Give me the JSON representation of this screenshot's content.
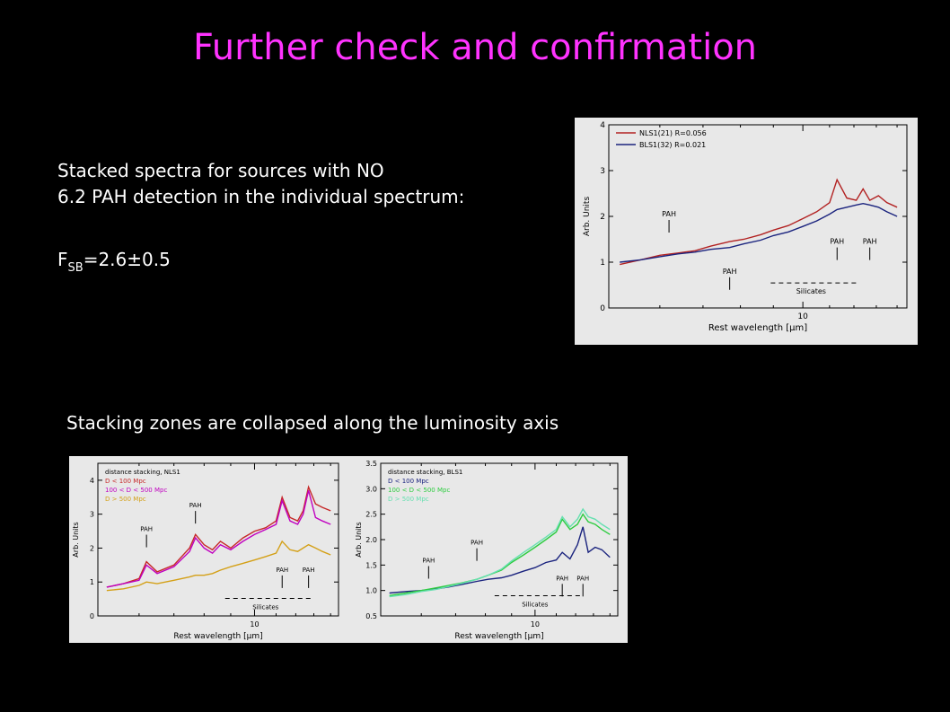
{
  "slide": {
    "title": "Further check and confirmation",
    "line1": "Stacked spectra for sources with NO",
    "line2": "6.2 PAH detection in the individual spectrum:",
    "fsb_main": "F",
    "fsb_sub": "SB",
    "fsb_value": "=2.6±0.5",
    "caption": "Stacking zones are collapsed along the luminosity axis"
  },
  "chart_data": [
    {
      "type": "line",
      "xlabel": "Rest wavelength [μm]",
      "ylabel": "Arb. Units",
      "xlim": [
        5,
        14.5
      ],
      "ylim": [
        0,
        4
      ],
      "x_ticks": [
        10
      ],
      "y_ticks": [
        0,
        1,
        2,
        3,
        4
      ],
      "x_tick_labels": [
        "10"
      ],
      "y_tick_labels": [
        "0",
        "1",
        "2",
        "3",
        "4"
      ],
      "legend_position": "top-left",
      "annotations": [
        {
          "text": "PAH",
          "x": 6.2,
          "y": 2.0
        },
        {
          "text": "PAH",
          "x": 7.7,
          "y": 0.75
        },
        {
          "text": "PAH",
          "x": 11.3,
          "y": 1.4
        },
        {
          "text": "PAH",
          "x": 12.7,
          "y": 1.4
        },
        {
          "text": "Silicates",
          "x": 10.3,
          "y": 0.35
        }
      ],
      "series": [
        {
          "name": "NLS1(21) R=0.056",
          "color": "#b22222",
          "x": [
            5.2,
            5.6,
            6.0,
            6.4,
            6.8,
            7.2,
            7.7,
            8.1,
            8.6,
            9.0,
            9.5,
            10.0,
            10.5,
            11.0,
            11.3,
            11.7,
            12.1,
            12.4,
            12.7,
            13.1,
            13.5,
            14.0
          ],
          "y": [
            0.95,
            1.05,
            1.15,
            1.2,
            1.25,
            1.35,
            1.45,
            1.5,
            1.6,
            1.7,
            1.8,
            1.95,
            2.1,
            2.3,
            2.8,
            2.4,
            2.35,
            2.6,
            2.35,
            2.45,
            2.3,
            2.2
          ]
        },
        {
          "name": "BLS1(32) R=0.021",
          "color": "#1a237e",
          "x": [
            5.2,
            5.6,
            6.0,
            6.4,
            6.8,
            7.2,
            7.7,
            8.1,
            8.6,
            9.0,
            9.5,
            10.0,
            10.5,
            11.0,
            11.3,
            11.7,
            12.1,
            12.4,
            12.7,
            13.1,
            13.5,
            14.0
          ],
          "y": [
            1.0,
            1.05,
            1.12,
            1.18,
            1.22,
            1.28,
            1.32,
            1.4,
            1.48,
            1.58,
            1.66,
            1.78,
            1.9,
            2.05,
            2.15,
            2.2,
            2.25,
            2.28,
            2.25,
            2.2,
            2.1,
            2.0
          ]
        }
      ]
    },
    {
      "type": "line",
      "xlabel": "Rest wavelength [μm]",
      "ylabel": "Arb. Units",
      "xlim": [
        5,
        14.5
      ],
      "ylim": [
        0,
        4.5
      ],
      "x_ticks": [
        10
      ],
      "y_ticks": [
        0,
        1,
        2,
        3,
        4
      ],
      "x_tick_labels": [
        "10"
      ],
      "y_tick_labels": [
        "0",
        "1",
        "2",
        "3",
        "4"
      ],
      "legend_position": "top-left",
      "legend_title": "distance stacking, NLS1",
      "annotations": [
        {
          "text": "PAH",
          "x": 6.2,
          "y": 2.5
        },
        {
          "text": "PAH",
          "x": 7.7,
          "y": 3.2
        },
        {
          "text": "PAH",
          "x": 11.3,
          "y": 1.3
        },
        {
          "text": "PAH",
          "x": 12.7,
          "y": 1.3
        },
        {
          "text": "Silicates",
          "x": 10.5,
          "y": 0.25
        }
      ],
      "series": [
        {
          "name": "D < 100 Mpc",
          "color": "#c62828",
          "x": [
            5.2,
            5.6,
            6.0,
            6.2,
            6.5,
            7.0,
            7.5,
            7.7,
            8.0,
            8.3,
            8.6,
            9.0,
            9.5,
            10.0,
            10.5,
            11.0,
            11.3,
            11.7,
            12.1,
            12.4,
            12.7,
            13.1,
            13.5,
            14.0
          ],
          "y": [
            0.85,
            0.95,
            1.1,
            1.6,
            1.3,
            1.5,
            2.0,
            2.4,
            2.1,
            1.95,
            2.2,
            2.0,
            2.3,
            2.5,
            2.6,
            2.8,
            3.5,
            2.9,
            2.8,
            3.1,
            3.8,
            3.3,
            3.2,
            3.1
          ]
        },
        {
          "name": "100 < D < 500 Mpc",
          "color": "#c000c0",
          "x": [
            5.2,
            5.6,
            6.0,
            6.2,
            6.5,
            7.0,
            7.5,
            7.7,
            8.0,
            8.3,
            8.6,
            9.0,
            9.5,
            10.0,
            10.5,
            11.0,
            11.3,
            11.7,
            12.1,
            12.4,
            12.7,
            13.1,
            13.5,
            14.0
          ],
          "y": [
            0.85,
            0.95,
            1.05,
            1.5,
            1.25,
            1.45,
            1.9,
            2.3,
            2.0,
            1.85,
            2.1,
            1.95,
            2.2,
            2.4,
            2.55,
            2.7,
            3.4,
            2.8,
            2.7,
            3.0,
            3.7,
            2.9,
            2.8,
            2.7
          ]
        },
        {
          "name": "D > 500 Mpc",
          "color": "#d4a017",
          "x": [
            5.2,
            5.6,
            6.0,
            6.2,
            6.5,
            7.0,
            7.5,
            7.7,
            8.0,
            8.3,
            8.6,
            9.0,
            9.5,
            10.0,
            10.5,
            11.0,
            11.3,
            11.7,
            12.1,
            12.4,
            12.7,
            13.1,
            13.5,
            14.0
          ],
          "y": [
            0.75,
            0.8,
            0.9,
            1.0,
            0.95,
            1.05,
            1.15,
            1.2,
            1.2,
            1.25,
            1.35,
            1.45,
            1.55,
            1.65,
            1.75,
            1.85,
            2.2,
            1.95,
            1.9,
            2.0,
            2.1,
            2.0,
            1.9,
            1.8
          ]
        }
      ]
    },
    {
      "type": "line",
      "xlabel": "Rest wavelength [μm]",
      "ylabel": "Arb. Units",
      "xlim": [
        5,
        14.5
      ],
      "ylim": [
        0.5,
        3.5
      ],
      "x_ticks": [
        10
      ],
      "y_ticks": [
        0.5,
        1.0,
        1.5,
        2.0,
        2.5,
        3.0,
        3.5
      ],
      "x_tick_labels": [
        "10"
      ],
      "y_tick_labels": [
        "0.5",
        "1.0",
        "1.5",
        "2.0",
        "2.5",
        "3.0",
        "3.5"
      ],
      "legend_position": "top-left",
      "legend_title": "distance stacking, BLS1",
      "annotations": [
        {
          "text": "PAH",
          "x": 6.2,
          "y": 1.55
        },
        {
          "text": "PAH",
          "x": 7.7,
          "y": 1.9
        },
        {
          "text": "PAH",
          "x": 11.3,
          "y": 1.2
        },
        {
          "text": "PAH",
          "x": 12.4,
          "y": 1.2
        },
        {
          "text": "Silicates",
          "x": 10.0,
          "y": 0.72
        }
      ],
      "series": [
        {
          "name": "D < 100 Mpc",
          "color": "#1a237e",
          "x": [
            5.2,
            5.6,
            6.0,
            6.4,
            6.8,
            7.2,
            7.7,
            8.1,
            8.6,
            9.0,
            9.5,
            10.0,
            10.5,
            11.0,
            11.3,
            11.7,
            12.1,
            12.4,
            12.7,
            13.1,
            13.5,
            14.0
          ],
          "y": [
            0.95,
            0.98,
            1.0,
            1.03,
            1.07,
            1.12,
            1.18,
            1.22,
            1.25,
            1.3,
            1.38,
            1.45,
            1.55,
            1.6,
            1.75,
            1.62,
            1.9,
            2.25,
            1.75,
            1.85,
            1.8,
            1.65
          ]
        },
        {
          "name": "100 < D < 500 Mpc",
          "color": "#2ecc40",
          "x": [
            5.2,
            5.6,
            6.0,
            6.4,
            6.8,
            7.2,
            7.7,
            8.1,
            8.6,
            9.0,
            9.5,
            10.0,
            10.5,
            11.0,
            11.3,
            11.7,
            12.1,
            12.4,
            12.7,
            13.1,
            13.5,
            14.0
          ],
          "y": [
            0.9,
            0.95,
            1.0,
            1.05,
            1.1,
            1.15,
            1.22,
            1.3,
            1.4,
            1.55,
            1.7,
            1.85,
            2.0,
            2.15,
            2.4,
            2.2,
            2.3,
            2.5,
            2.35,
            2.3,
            2.2,
            2.1
          ]
        },
        {
          "name": "D > 500 Mpc",
          "color": "#66e0b0",
          "x": [
            5.2,
            5.6,
            6.0,
            6.4,
            6.8,
            7.2,
            7.7,
            8.1,
            8.6,
            9.0,
            9.5,
            10.0,
            10.5,
            11.0,
            11.3,
            11.7,
            12.1,
            12.4,
            12.7,
            13.1,
            13.5,
            14.0
          ],
          "y": [
            0.88,
            0.92,
            0.98,
            1.02,
            1.08,
            1.14,
            1.22,
            1.3,
            1.42,
            1.58,
            1.75,
            1.9,
            2.05,
            2.2,
            2.45,
            2.25,
            2.4,
            2.6,
            2.45,
            2.4,
            2.3,
            2.2
          ]
        }
      ]
    }
  ]
}
